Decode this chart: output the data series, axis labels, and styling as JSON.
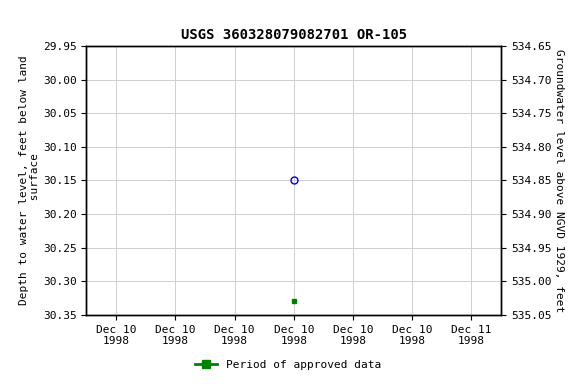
{
  "title": "USGS 360328079082701 OR-105",
  "ylabel_left": "Depth to water level, feet below land\n surface",
  "ylabel_right": "Groundwater level above NGVD 1929, feet",
  "ylim_left": [
    29.95,
    30.35
  ],
  "ylim_right": [
    534.65,
    535.05
  ],
  "xlim": [
    -0.5,
    6.5
  ],
  "xtick_positions": [
    0,
    1,
    2,
    3,
    4,
    5,
    6
  ],
  "xtick_labels": [
    "Dec 10\n1998",
    "Dec 10\n1998",
    "Dec 10\n1998",
    "Dec 10\n1998",
    "Dec 10\n1998",
    "Dec 10\n1998",
    "Dec 11\n1998"
  ],
  "blue_point_x": 3.0,
  "blue_point_y": 30.15,
  "green_point_x": 3.0,
  "green_point_y": 30.33,
  "blue_color": "#0000cc",
  "green_color": "#008000",
  "legend_label": "Period of approved data",
  "background_color": "#ffffff",
  "grid_color": "#d0d0d0",
  "yticks_left": [
    29.95,
    30.0,
    30.05,
    30.1,
    30.15,
    30.2,
    30.25,
    30.3,
    30.35
  ],
  "yticks_right": [
    535.05,
    535.0,
    534.95,
    534.9,
    534.85,
    534.8,
    534.75,
    534.7,
    534.65
  ],
  "font_size_ticks": 8,
  "font_size_label": 8,
  "font_size_title": 10
}
